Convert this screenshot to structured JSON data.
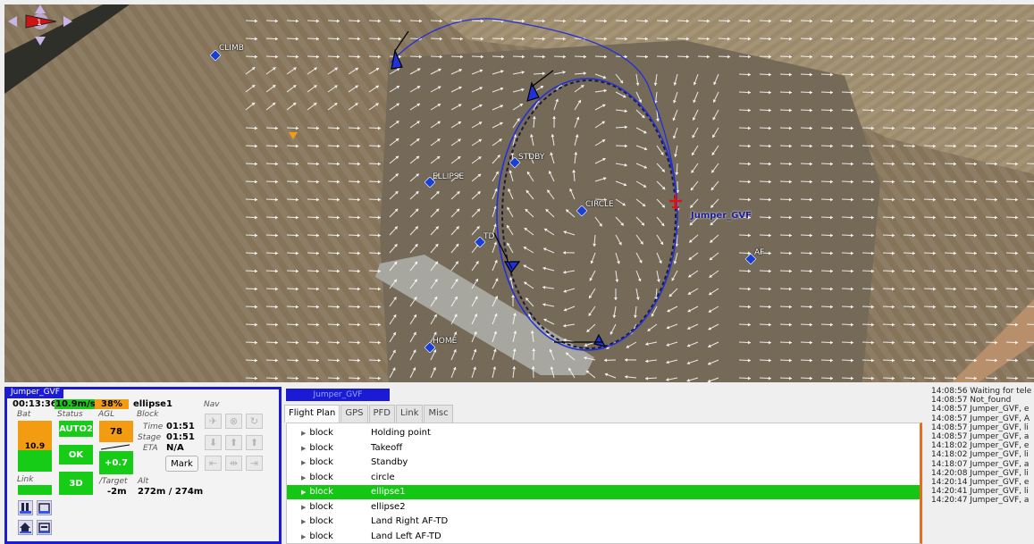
{
  "map": {
    "compass_label": "1",
    "waypoints": [
      {
        "name": "CLIMB"
      },
      {
        "name": "STDBY"
      },
      {
        "name": "ELLIPSE"
      },
      {
        "name": "CIRCLE"
      },
      {
        "name": "TD"
      },
      {
        "name": "AF"
      },
      {
        "name": "HOME"
      }
    ],
    "aircraft_name": "Jumper_GVF",
    "colors": {
      "track": "#2230d8",
      "waypoint": "#1a3fd6",
      "aircraft": "#e01010",
      "vector_field": "#ffffff"
    }
  },
  "strip": {
    "title": "Jumper_GVF",
    "flight_time": "00:13:36",
    "speed": "10.9m/s",
    "throttle": "38%",
    "block_name": "ellipse1",
    "labels": {
      "bat": "Bat",
      "status": "Status",
      "agl": "AGL",
      "block": "Block",
      "nav": "Nav",
      "time": "Time",
      "stage": "Stage",
      "eta": "ETA",
      "link": "Link",
      "target": "/Target",
      "alt": "Alt"
    },
    "bat_value": "10.9",
    "mode": "AUTO2",
    "gps_status": "OK",
    "fix": "3D",
    "agl_value": "78",
    "climb": "+0.7",
    "block_time": "01:51",
    "stage_time": "01:51",
    "eta": "N/A",
    "target_diff": "-2m",
    "alt_value": "272m / 274m",
    "mark_label": "Mark",
    "colors": {
      "orange": "#f39c12",
      "green": "#16cc16",
      "blue": "#1b1bd6"
    }
  },
  "flight_plan": {
    "aircraft_tab": "Jumper_GVF",
    "tabs": [
      "Flight Plan",
      "GPS",
      "PFD",
      "Link",
      "Misc"
    ],
    "active_tab": "Flight Plan",
    "rows": [
      {
        "kind": "block",
        "name": "Holding point"
      },
      {
        "kind": "block",
        "name": "Takeoff"
      },
      {
        "kind": "block",
        "name": "Standby"
      },
      {
        "kind": "block",
        "name": "circle"
      },
      {
        "kind": "block",
        "name": "ellipse1",
        "current": true
      },
      {
        "kind": "block",
        "name": "ellipse2"
      },
      {
        "kind": "block",
        "name": "Land Right AF-TD"
      },
      {
        "kind": "block",
        "name": "Land Left AF-TD"
      }
    ]
  },
  "console": {
    "lines": [
      "14:08:56 Waiting for tele",
      "14:08:57 Not_found",
      "14:08:57 Jumper_GVF, e",
      "14:08:57 Jumper_GVF, A",
      "14:08:57 Jumper_GVF, li",
      "14:08:57 Jumper_GVF, a",
      "14:18:02 Jumper_GVF, e",
      "14:18:02 Jumper_GVF, li",
      "14:18:07 Jumper_GVF, a",
      "14:20:08 Jumper_GVF, li",
      "14:20:14 Jumper_GVF, e",
      "14:20:41 Jumper_GVF, li",
      "14:20:47 Jumper_GVF, a"
    ]
  }
}
